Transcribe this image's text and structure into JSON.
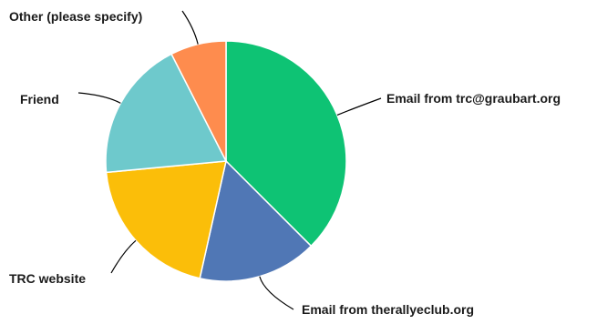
{
  "chart_data": {
    "type": "pie",
    "title": "",
    "start_angle_deg": 0,
    "direction": "clockwise",
    "slices": [
      {
        "label": "Email from trc@graubart.org",
        "value": 37.5,
        "color": "#0ec374"
      },
      {
        "label": "Email from therallyeclub.org",
        "value": 16.0,
        "color": "#5077b5"
      },
      {
        "label": "TRC website",
        "value": 20.0,
        "color": "#fbbe09"
      },
      {
        "label": "Friend",
        "value": 19.0,
        "color": "#6ec9cc"
      },
      {
        "label": "Other (please specify)",
        "value": 7.5,
        "color": "#fe8c4e"
      }
    ]
  }
}
